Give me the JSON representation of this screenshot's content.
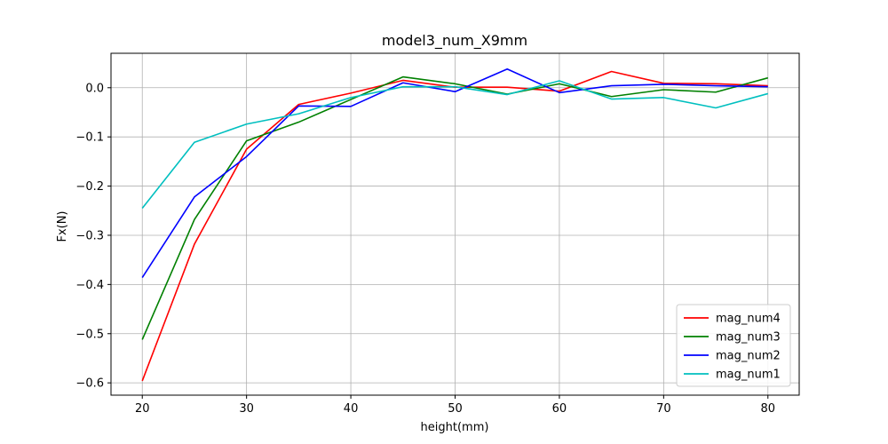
{
  "chart_data": {
    "type": "line",
    "title": "model3_num_X9mm",
    "xlabel": "height(mm)",
    "ylabel": "Fx(N)",
    "xlim": [
      17,
      83
    ],
    "ylim": [
      -0.625,
      0.07
    ],
    "x_ticks": [
      20,
      30,
      40,
      50,
      60,
      70,
      80
    ],
    "y_ticks": [
      -0.6,
      -0.5,
      -0.4,
      -0.3,
      -0.2,
      -0.1,
      0.0
    ],
    "x_tick_labels": [
      "20",
      "30",
      "40",
      "50",
      "60",
      "70",
      "80"
    ],
    "y_tick_labels": [
      "−0.6",
      "−0.5",
      "−0.4",
      "−0.3",
      "−0.2",
      "−0.1",
      "0.0"
    ],
    "grid": true,
    "legend_position": "lower-right",
    "x": [
      20,
      25,
      30,
      35,
      40,
      45,
      50,
      55,
      60,
      65,
      70,
      75,
      80
    ],
    "series": [
      {
        "name": "mag_num4",
        "color": "#ff0000",
        "values": [
          -0.596,
          -0.318,
          -0.125,
          -0.034,
          -0.011,
          0.015,
          0.001,
          0.001,
          -0.007,
          0.033,
          0.009,
          0.008,
          0.004
        ]
      },
      {
        "name": "mag_num3",
        "color": "#008000",
        "values": [
          -0.512,
          -0.268,
          -0.108,
          -0.07,
          -0.024,
          0.022,
          0.008,
          -0.013,
          0.008,
          -0.018,
          -0.004,
          -0.009,
          0.02
        ]
      },
      {
        "name": "mag_num2",
        "color": "#0000ff",
        "values": [
          -0.386,
          -0.222,
          -0.14,
          -0.037,
          -0.038,
          0.01,
          -0.008,
          0.038,
          -0.01,
          0.004,
          0.007,
          0.004,
          0.002
        ]
      },
      {
        "name": "mag_num1",
        "color": "#00bfbf",
        "values": [
          -0.245,
          -0.111,
          -0.074,
          -0.053,
          -0.02,
          0.002,
          0.002,
          -0.014,
          0.014,
          -0.023,
          -0.02,
          -0.041,
          -0.012
        ]
      }
    ]
  }
}
